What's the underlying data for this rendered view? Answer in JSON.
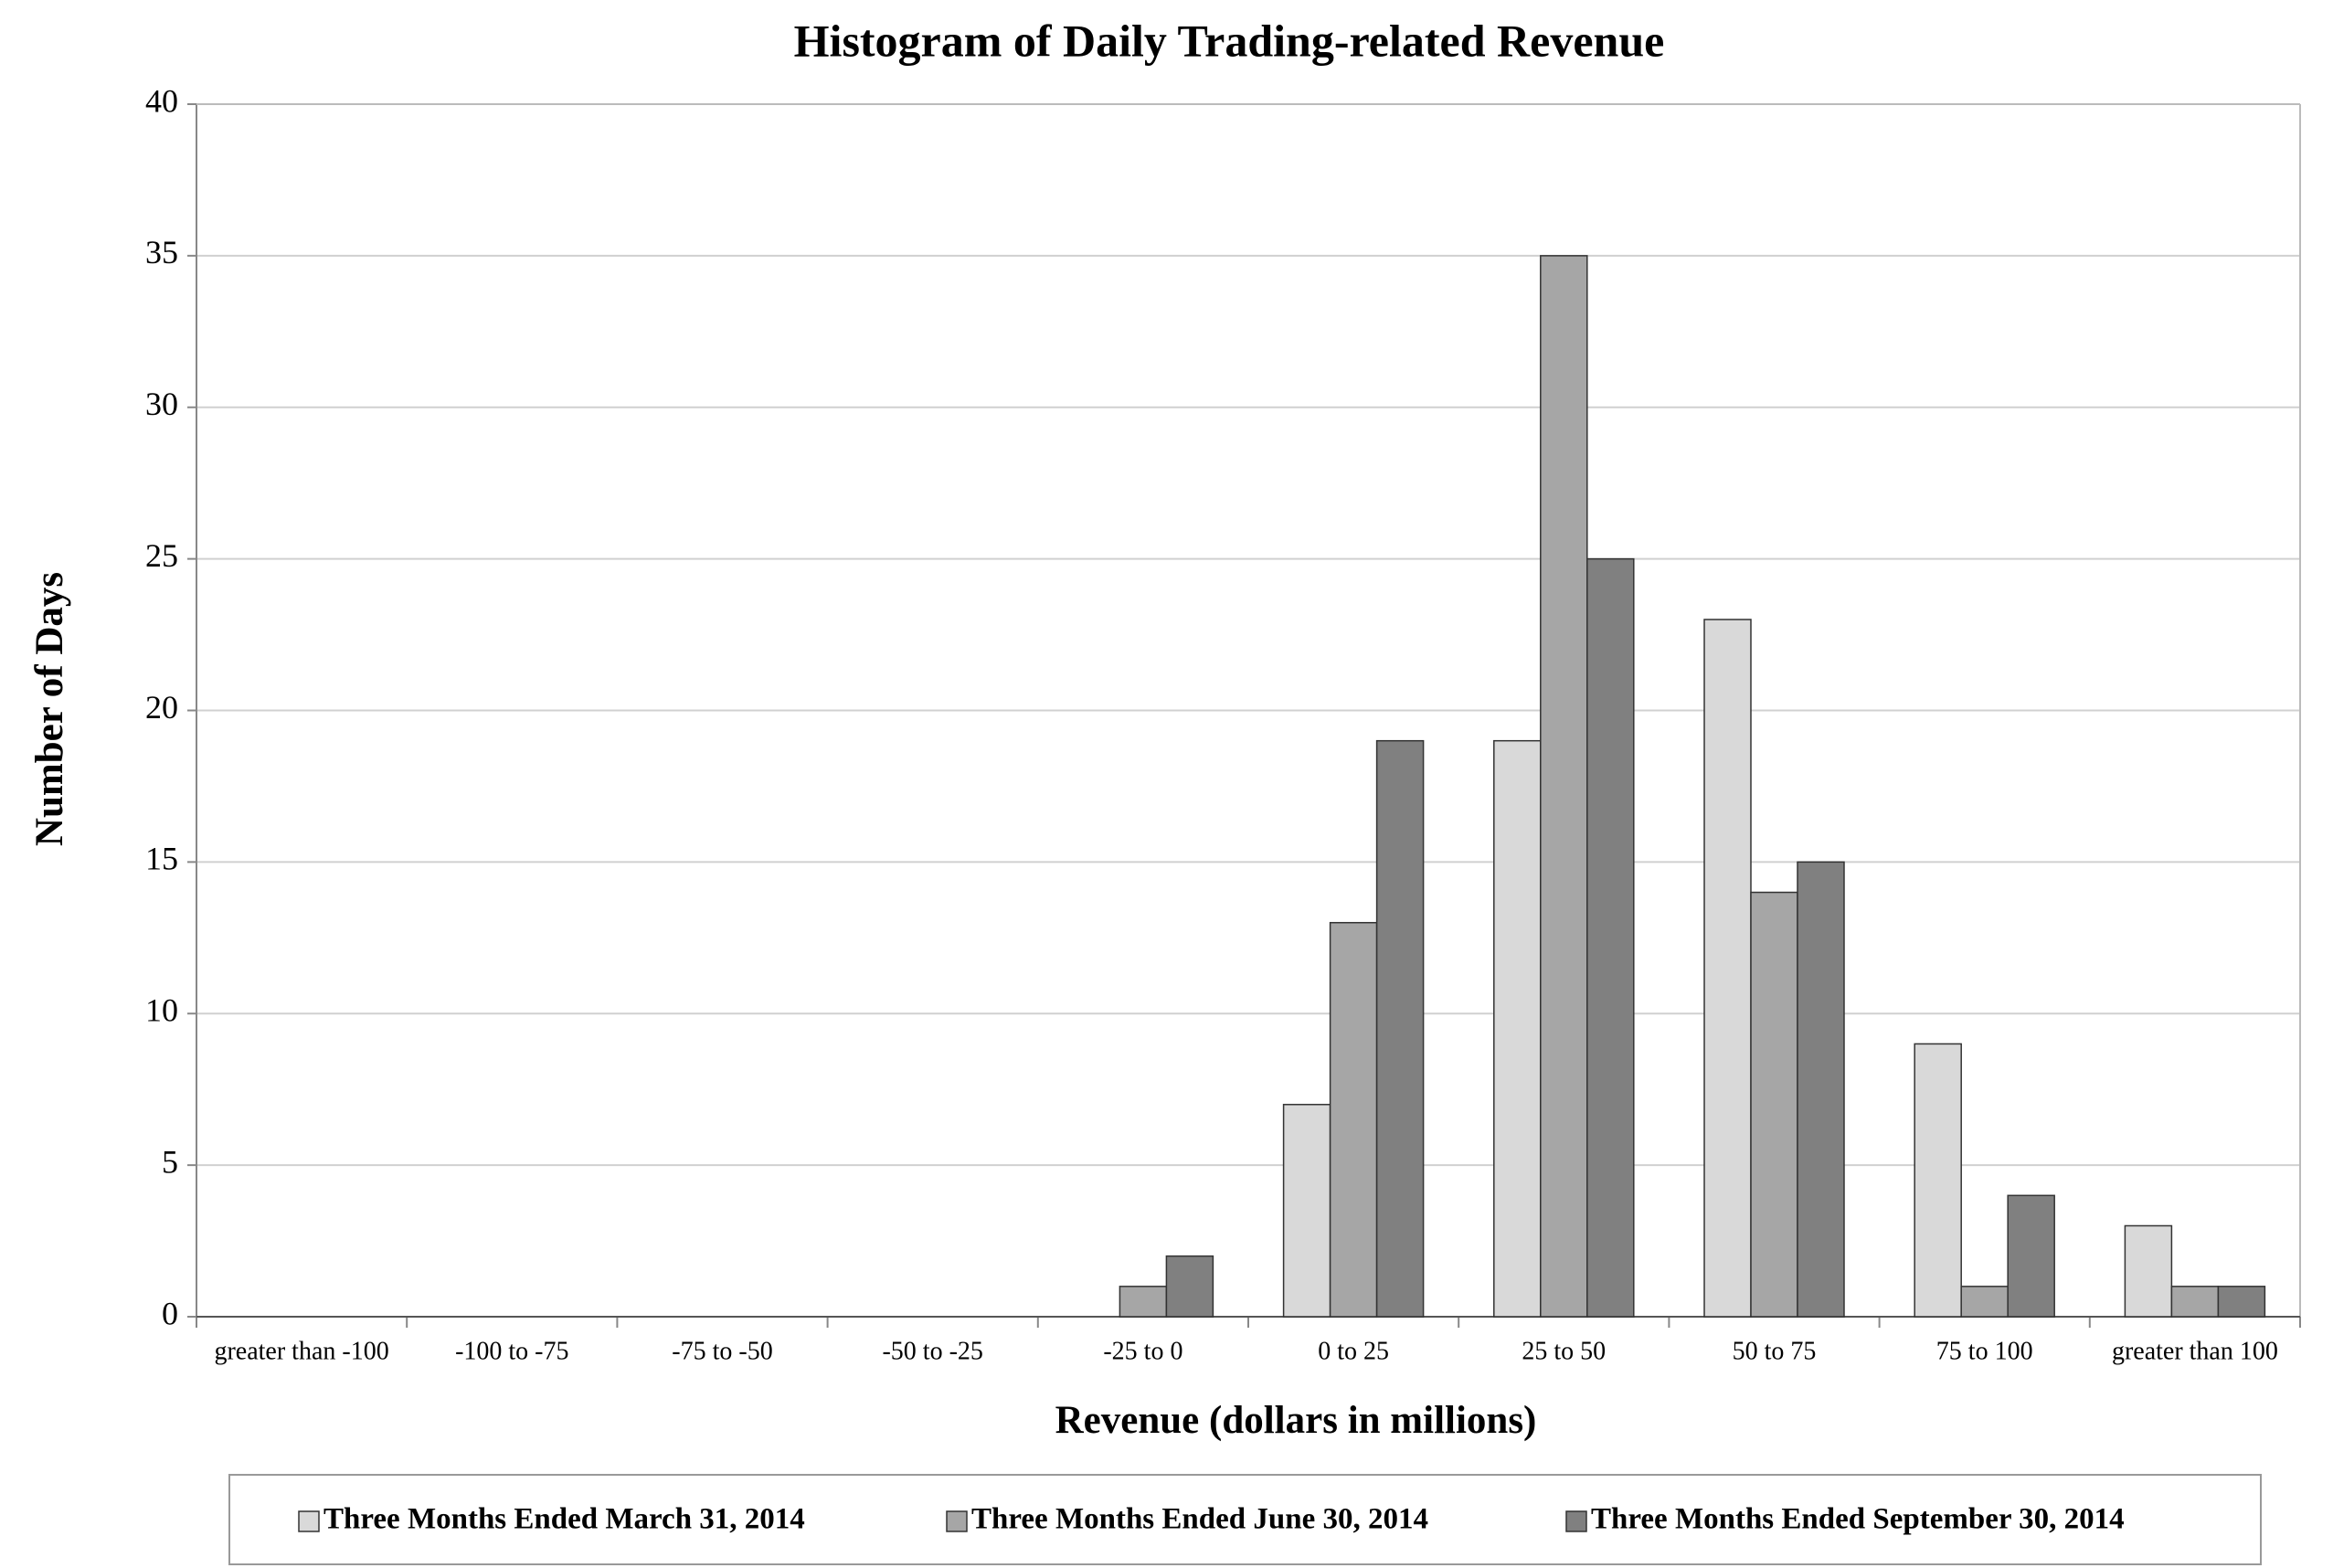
{
  "chart_data": {
    "type": "bar",
    "title": "Histogram of Daily Trading-related Revenue",
    "x_label": "Revenue (dollars in millions)",
    "y_label": "Number of Days",
    "categories": [
      "greater than -100",
      "-100 to -75",
      "-75 to -50",
      "-50 to -25",
      "-25 to 0",
      "0 to 25",
      "25 to 50",
      "50 to 75",
      "75 to 100",
      "greater than 100"
    ],
    "series": [
      {
        "name": "Three Months Ended March 31, 2014",
        "color": "#d9d9d9",
        "values": [
          0,
          0,
          0,
          0,
          0,
          7,
          19,
          23,
          9,
          3
        ]
      },
      {
        "name": "Three Months Ended June 30, 2014",
        "color": "#a6a6a6",
        "values": [
          0,
          0,
          0,
          0,
          1,
          13,
          35,
          14,
          1,
          1
        ]
      },
      {
        "name": "Three Months Ended September 30, 2014",
        "color": "#808080",
        "values": [
          0,
          0,
          0,
          0,
          2,
          19,
          25,
          15,
          4,
          1
        ]
      }
    ],
    "ylim": [
      0,
      40
    ],
    "yticks": [
      0,
      5,
      10,
      15,
      20,
      25,
      30,
      35,
      40
    ],
    "grid": true,
    "legend": "bottom"
  }
}
